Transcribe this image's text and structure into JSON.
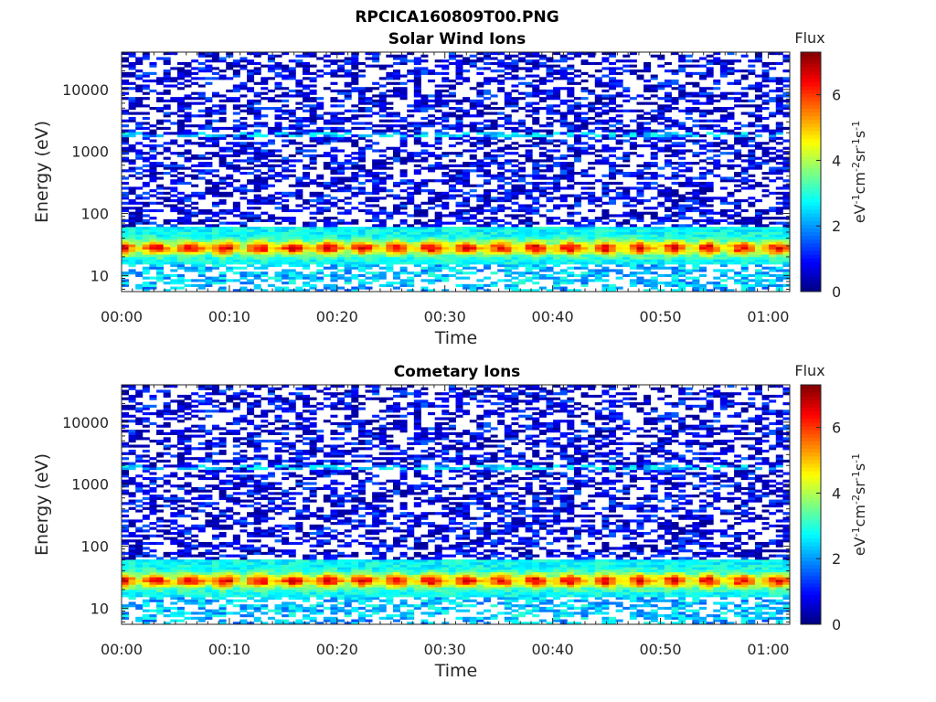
{
  "figure_title": "RPCICA160809T00.PNG",
  "colors": {
    "axis": "#262626",
    "background": "#ffffff",
    "colormap": "jet"
  },
  "chart_data": [
    {
      "type": "heatmap",
      "title": "Solar Wind Ions",
      "xlabel": "Time",
      "ylabel": "Energy (eV)",
      "x_range": [
        "00:00",
        "01:02"
      ],
      "x_ticks": [
        "00:00",
        "00:10",
        "00:20",
        "00:30",
        "00:40",
        "00:50",
        "01:00"
      ],
      "y_scale": "log",
      "y_range_ev": [
        5.5,
        40000
      ],
      "y_ticks": [
        "10",
        "100",
        "1000",
        "10000"
      ],
      "colorbar": {
        "title": "Flux",
        "unit_label": "eV-1cm-2sr-1s-1",
        "range": [
          0,
          7.3
        ],
        "ticks": [
          "0",
          "2",
          "4",
          "6"
        ]
      },
      "peak_energy_ev": 28,
      "peak_flux_max": 6.8,
      "band_energy_ev": 1800,
      "band_flux_max": 3.0,
      "time_bins": 96,
      "energy_bins": 96,
      "periodicity_minutes": 3.2
    },
    {
      "type": "heatmap",
      "title": "Cometary Ions",
      "xlabel": "Time",
      "ylabel": "Energy (eV)",
      "x_range": [
        "00:00",
        "01:02"
      ],
      "x_ticks": [
        "00:00",
        "00:10",
        "00:20",
        "00:30",
        "00:40",
        "00:50",
        "01:00"
      ],
      "y_scale": "log",
      "y_range_ev": [
        5.5,
        40000
      ],
      "y_ticks": [
        "10",
        "100",
        "1000",
        "10000"
      ],
      "colorbar": {
        "title": "Flux",
        "unit_label": "eV-1cm-2sr-1s-1",
        "range": [
          0,
          7.3
        ],
        "ticks": [
          "0",
          "2",
          "4",
          "6"
        ]
      },
      "peak_energy_ev": 28,
      "peak_flux_max": 6.8,
      "band_energy_ev": 1800,
      "band_flux_max": 3.0,
      "time_bins": 96,
      "energy_bins": 96,
      "periodicity_minutes": 3.2
    }
  ]
}
